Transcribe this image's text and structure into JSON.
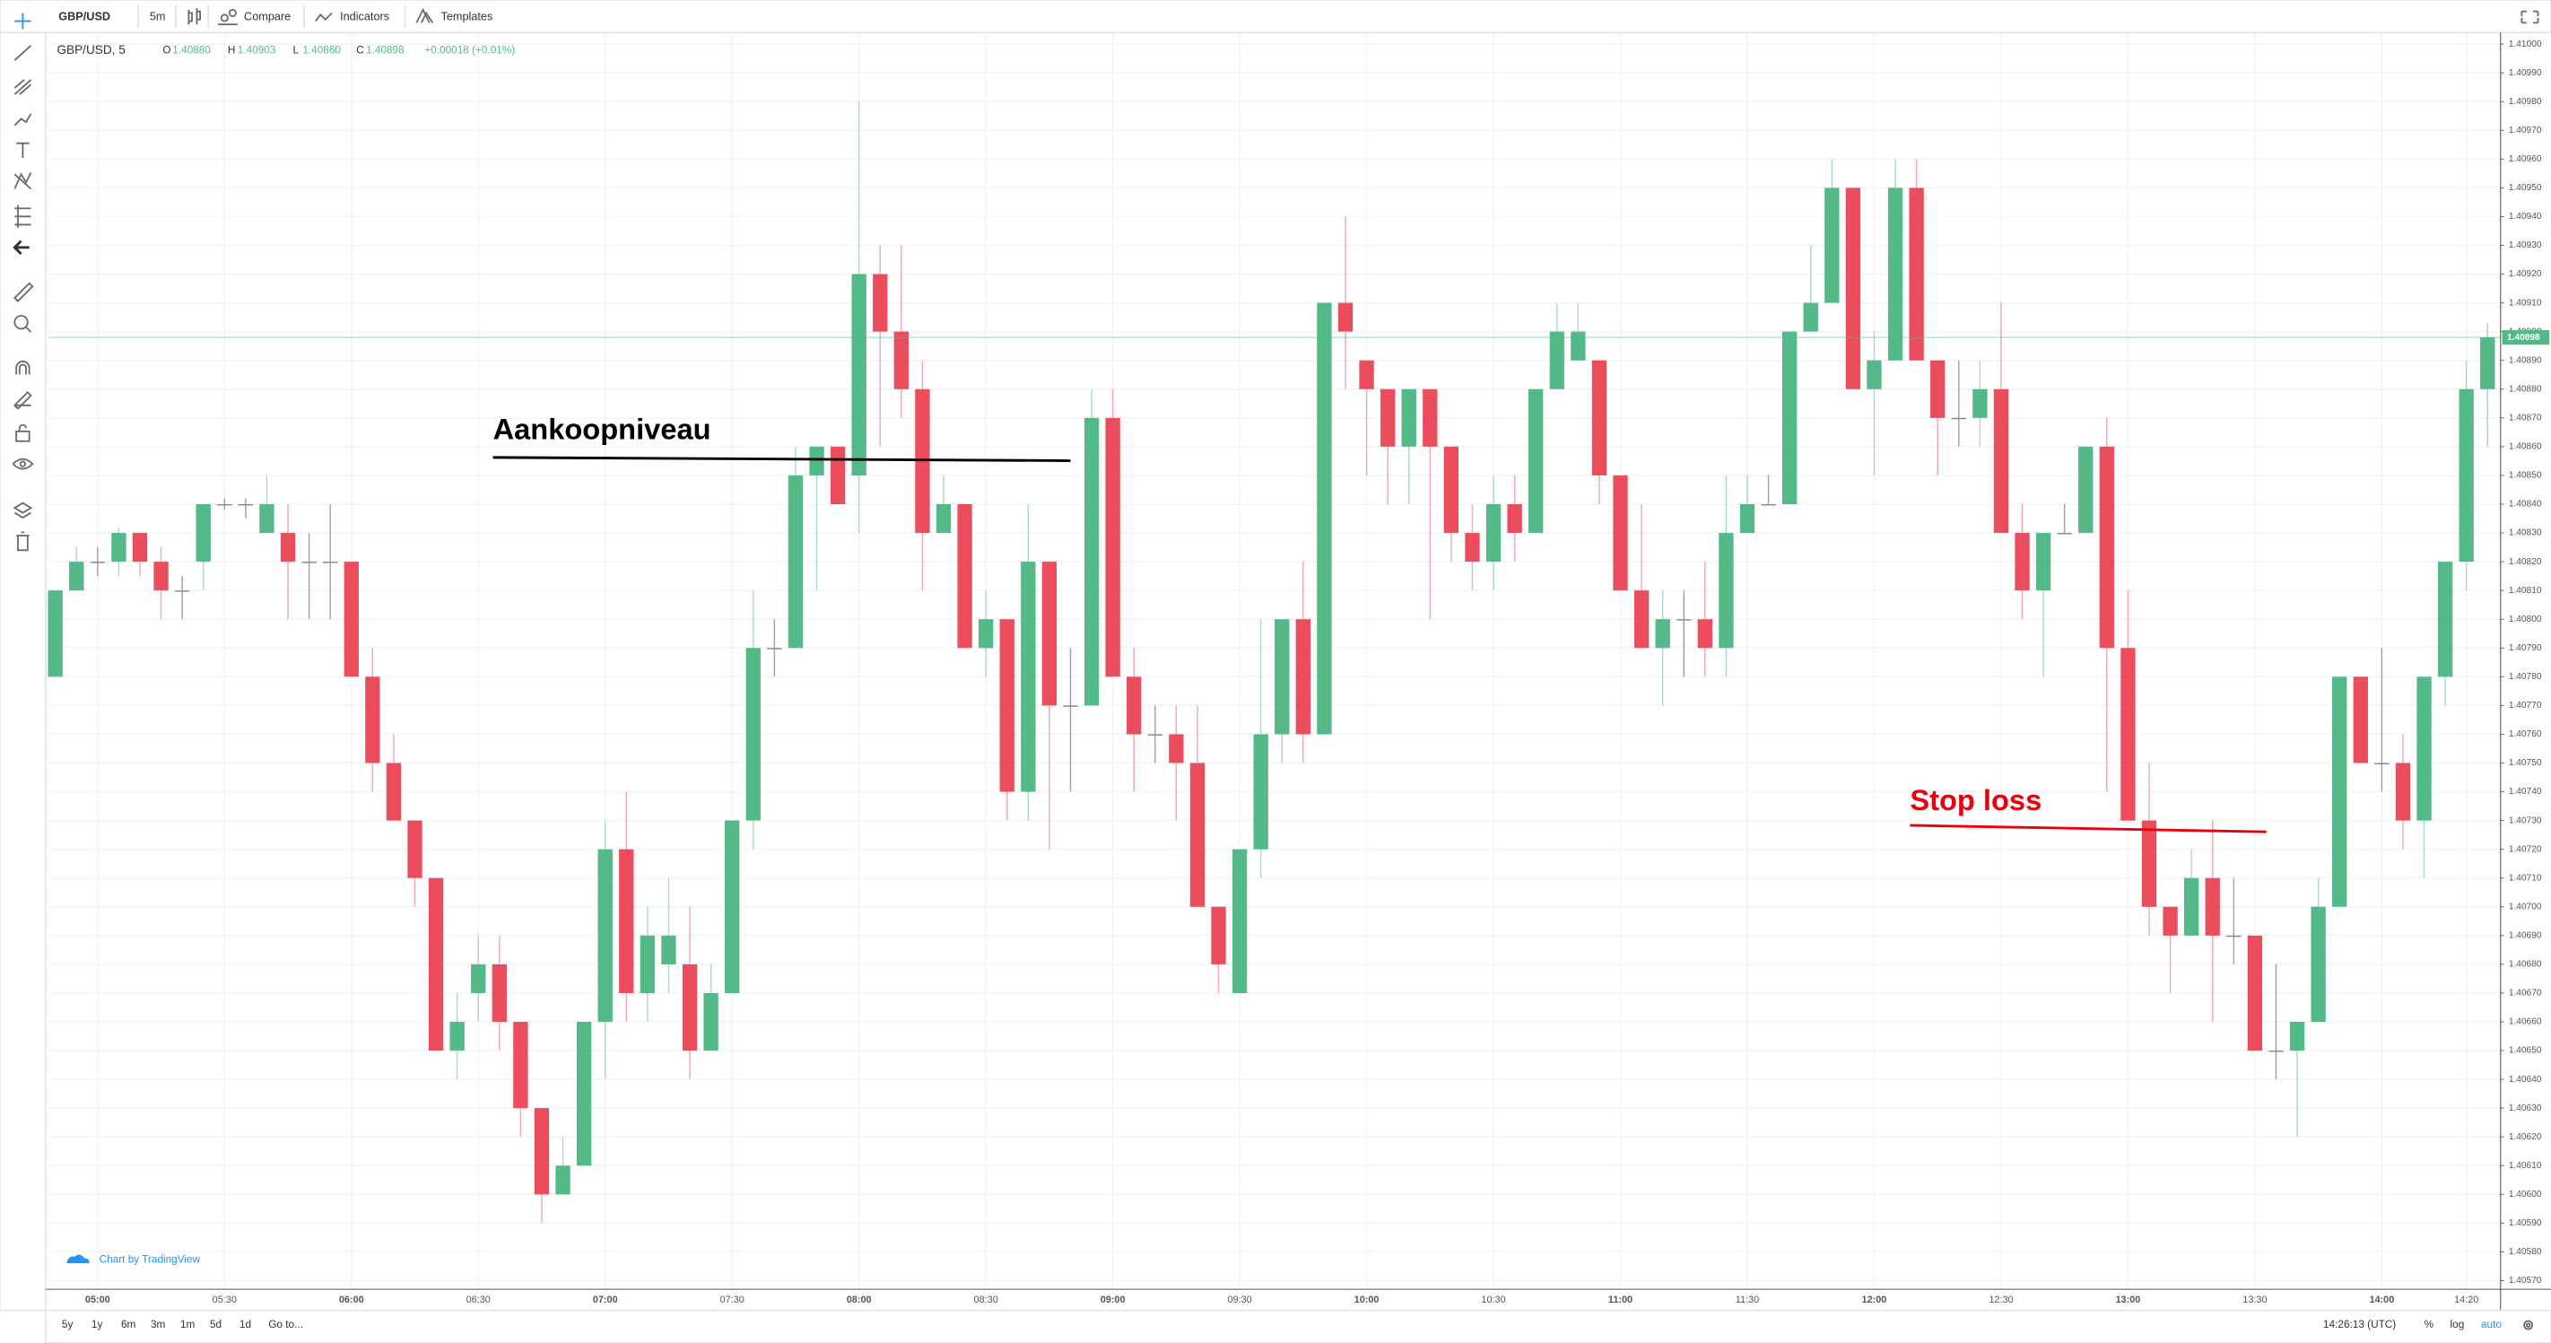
{
  "toolbar": {
    "symbol": "GBP/USD",
    "interval": "5m",
    "compare": "Compare",
    "indicators": "Indicators",
    "templates": "Templates"
  },
  "legend": {
    "symbol": "GBP/USD, 5",
    "o_label": "O",
    "o_value": "1.40880",
    "h_label": "H",
    "h_value": "1.40903",
    "l_label": "L",
    "l_value": "1.40860",
    "c_label": "C",
    "c_value": "1.40898",
    "change": "+0.00018 (+0.01%)"
  },
  "watermark": "Chart by TradingView",
  "bottombar": {
    "ranges": [
      "5y",
      "1y",
      "6m",
      "3m",
      "1m",
      "5d",
      "1d"
    ],
    "goto": "Go to...",
    "clock": "14:26:13 (UTC)",
    "percent": "%",
    "log": "log",
    "auto": "auto"
  },
  "chart_data": {
    "type": "candlestick",
    "up_color": "#53b987",
    "down_color": "#eb4d5c",
    "grid": true,
    "annotations": [
      {
        "text": "Aankoopniveau",
        "color": "#000000"
      },
      {
        "text": "Stop loss",
        "color": "#e8000b"
      }
    ],
    "last_price": {
      "value": 1.40898,
      "label": "1.40898"
    },
    "categories": [
      null,
      null,
      "05:00",
      null,
      null,
      null,
      null,
      null,
      "05:30",
      null,
      null,
      null,
      null,
      null,
      "06:00",
      null,
      null,
      null,
      null,
      null,
      "06:30",
      null,
      null,
      null,
      null,
      null,
      "07:00",
      null,
      null,
      null,
      null,
      null,
      "07:30",
      null,
      null,
      null,
      null,
      null,
      "08:00",
      null,
      null,
      null,
      null,
      null,
      "08:30",
      null,
      null,
      null,
      null,
      null,
      "09:00",
      null,
      null,
      null,
      null,
      null,
      "09:30",
      null,
      null,
      null,
      null,
      null,
      "10:00",
      null,
      null,
      null,
      null,
      null,
      "10:30",
      null,
      null,
      null,
      null,
      null,
      "11:00",
      null,
      null,
      null,
      null,
      null,
      "11:30",
      null,
      null,
      null,
      null,
      null,
      "12:00",
      null,
      null,
      null,
      null,
      null,
      "12:30",
      null,
      null,
      null,
      null,
      null,
      "13:00",
      null,
      null,
      null,
      null,
      null,
      "13:30",
      null,
      null,
      null,
      null,
      null,
      "14:00",
      null,
      null,
      null,
      "14:20",
      null
    ],
    "open": [
      1.4078,
      1.4081,
      1.4082,
      1.4082,
      1.4083,
      1.4082,
      1.4081,
      1.4082,
      1.4084,
      1.4084,
      1.4083,
      1.4083,
      1.4082,
      1.4082,
      1.4082,
      1.4078,
      1.4075,
      1.4073,
      1.4071,
      1.4065,
      1.4067,
      1.4068,
      1.4066,
      1.4063,
      1.406,
      1.4061,
      1.4066,
      1.4072,
      1.4067,
      1.4068,
      1.4068,
      1.4065,
      1.4067,
      1.4073,
      1.4079,
      1.4079,
      1.4085,
      1.4086,
      1.4085,
      1.4092,
      1.409,
      1.4088,
      1.4083,
      1.4084,
      1.4079,
      1.408,
      1.4074,
      1.4082,
      1.4077,
      1.4077,
      1.4087,
      1.4078,
      1.4076,
      1.4076,
      1.4075,
      1.407,
      1.4067,
      1.4072,
      1.4076,
      1.408,
      1.4076,
      1.4091,
      1.4089,
      1.4088,
      1.4086,
      1.4088,
      1.4086,
      1.4083,
      1.4082,
      1.4084,
      1.4083,
      1.4088,
      1.4089,
      1.4089,
      1.4085,
      1.4081,
      1.4079,
      1.408,
      1.408,
      1.4079,
      1.4083,
      1.4084,
      1.4084,
      1.409,
      1.4091,
      1.4095,
      1.4088,
      1.4089,
      1.4095,
      1.4089,
      1.4087,
      1.4087,
      1.4088,
      1.4083,
      1.4081,
      1.4083,
      1.4083,
      1.4086,
      1.4079,
      1.4073,
      1.407,
      1.4069,
      1.4071,
      1.4069,
      1.4069,
      1.4065,
      1.4065,
      1.4066,
      1.407,
      1.4078,
      1.4075,
      1.4075,
      1.4073,
      1.4078,
      1.4082,
      1.4088
    ],
    "high": [
      1.4081,
      1.40825,
      1.40825,
      1.40832,
      1.4083,
      1.40825,
      1.40815,
      1.4084,
      1.40842,
      1.40842,
      1.4085,
      1.4084,
      1.4083,
      1.4084,
      1.4082,
      1.4079,
      1.4076,
      1.4073,
      1.4071,
      1.4067,
      1.4069,
      1.4069,
      1.4066,
      1.4063,
      1.4062,
      1.4066,
      1.4073,
      1.4074,
      1.407,
      1.4071,
      1.407,
      1.4068,
      1.4073,
      1.4081,
      1.408,
      1.4086,
      1.4086,
      1.4086,
      1.4098,
      1.4093,
      1.4093,
      1.4089,
      1.4085,
      1.4084,
      1.4081,
      1.408,
      1.4084,
      1.4082,
      1.4079,
      1.4088,
      1.4088,
      1.4079,
      1.4077,
      1.4077,
      1.4077,
      1.407,
      1.4072,
      1.408,
      1.408,
      1.4082,
      1.4091,
      1.4094,
      1.4089,
      1.4088,
      1.4088,
      1.4088,
      1.4086,
      1.4084,
      1.4085,
      1.4085,
      1.4088,
      1.4091,
      1.4091,
      1.4089,
      1.4085,
      1.4084,
      1.4081,
      1.4081,
      1.4082,
      1.4085,
      1.4085,
      1.4085,
      1.409,
      1.4093,
      1.4096,
      1.4095,
      1.409,
      1.4096,
      1.4096,
      1.4089,
      1.4089,
      1.4089,
      1.4091,
      1.4084,
      1.4083,
      1.4084,
      1.4086,
      1.4087,
      1.4081,
      1.4075,
      1.407,
      1.4072,
      1.4073,
      1.4071,
      1.4069,
      1.4068,
      1.4066,
      1.4071,
      1.4078,
      1.4078,
      1.4079,
      1.4076,
      1.4078,
      1.4082,
      1.4089,
      1.40903
    ],
    "low": [
      1.4078,
      1.4081,
      1.40815,
      1.40815,
      1.40815,
      1.408,
      1.408,
      1.4081,
      1.40838,
      1.40835,
      1.4083,
      1.408,
      1.408,
      1.408,
      1.4078,
      1.4074,
      1.4073,
      1.407,
      1.4065,
      1.4064,
      1.4066,
      1.4065,
      1.4062,
      1.4059,
      1.406,
      1.4061,
      1.4064,
      1.4066,
      1.4066,
      1.4067,
      1.4064,
      1.4065,
      1.4067,
      1.4072,
      1.4078,
      1.4079,
      1.4081,
      1.4084,
      1.4083,
      1.4086,
      1.4087,
      1.4081,
      1.4083,
      1.4079,
      1.4078,
      1.4073,
      1.4073,
      1.4072,
      1.4074,
      1.4077,
      1.4078,
      1.4074,
      1.4075,
      1.4073,
      1.407,
      1.4067,
      1.4067,
      1.4071,
      1.4075,
      1.4075,
      1.4076,
      1.4088,
      1.4085,
      1.4084,
      1.4084,
      1.408,
      1.4082,
      1.4081,
      1.4081,
      1.4082,
      1.4083,
      1.4088,
      1.4089,
      1.4084,
      1.4081,
      1.4079,
      1.4077,
      1.4078,
      1.4078,
      1.4078,
      1.4083,
      1.4084,
      1.4084,
      1.409,
      1.4091,
      1.4088,
      1.4085,
      1.4089,
      1.4089,
      1.4085,
      1.4086,
      1.4086,
      1.4083,
      1.408,
      1.4078,
      1.4083,
      1.4083,
      1.4074,
      1.4073,
      1.4069,
      1.4067,
      1.4069,
      1.4066,
      1.4068,
      1.4065,
      1.4064,
      1.4062,
      1.4066,
      1.407,
      1.4075,
      1.4074,
      1.4072,
      1.4071,
      1.4077,
      1.4081,
      1.4086
    ],
    "close": [
      1.4081,
      1.4082,
      1.4082,
      1.4083,
      1.4082,
      1.4081,
      1.4081,
      1.4084,
      1.4084,
      1.4084,
      1.4084,
      1.4082,
      1.4082,
      1.4082,
      1.4078,
      1.4075,
      1.4073,
      1.4071,
      1.4065,
      1.4066,
      1.4068,
      1.4066,
      1.4063,
      1.406,
      1.4061,
      1.4066,
      1.4072,
      1.4067,
      1.4069,
      1.4069,
      1.4065,
      1.4067,
      1.4073,
      1.4079,
      1.4079,
      1.4085,
      1.4086,
      1.4084,
      1.4092,
      1.409,
      1.4088,
      1.4083,
      1.4084,
      1.4079,
      1.408,
      1.4074,
      1.4082,
      1.4077,
      1.4077,
      1.4087,
      1.4078,
      1.4076,
      1.4076,
      1.4075,
      1.407,
      1.4068,
      1.4072,
      1.4076,
      1.408,
      1.4076,
      1.4091,
      1.409,
      1.4088,
      1.4086,
      1.4088,
      1.4086,
      1.4083,
      1.4082,
      1.4084,
      1.4083,
      1.4088,
      1.409,
      1.409,
      1.4085,
      1.4081,
      1.4079,
      1.408,
      1.408,
      1.4079,
      1.4083,
      1.4084,
      1.4084,
      1.409,
      1.4091,
      1.4095,
      1.4088,
      1.4089,
      1.4095,
      1.4089,
      1.4087,
      1.4087,
      1.4088,
      1.4083,
      1.4081,
      1.4083,
      1.4083,
      1.4086,
      1.4079,
      1.4073,
      1.407,
      1.4069,
      1.4071,
      1.4069,
      1.4069,
      1.4065,
      1.4065,
      1.4066,
      1.407,
      1.4078,
      1.4075,
      1.4075,
      1.4073,
      1.4078,
      1.4082,
      1.4088,
      1.40898
    ],
    "ylim": [
      1.40567,
      1.41004
    ],
    "yticks": [
      {
        "value": 1.4057,
        "label": "1.40570"
      },
      {
        "value": 1.4058,
        "label": "1.40580"
      },
      {
        "value": 1.4059,
        "label": "1.40590"
      },
      {
        "value": 1.406,
        "label": "1.40600"
      },
      {
        "value": 1.4061,
        "label": "1.40610"
      },
      {
        "value": 1.4062,
        "label": "1.40620"
      },
      {
        "value": 1.4063,
        "label": "1.40630"
      },
      {
        "value": 1.4064,
        "label": "1.40640"
      },
      {
        "value": 1.4065,
        "label": "1.40650"
      },
      {
        "value": 1.4066,
        "label": "1.40660"
      },
      {
        "value": 1.4067,
        "label": "1.40670"
      },
      {
        "value": 1.4068,
        "label": "1.40680"
      },
      {
        "value": 1.4069,
        "label": "1.40690"
      },
      {
        "value": 1.407,
        "label": "1.40700"
      },
      {
        "value": 1.4071,
        "label": "1.40710"
      },
      {
        "value": 1.4072,
        "label": "1.40720"
      },
      {
        "value": 1.4073,
        "label": "1.40730"
      },
      {
        "value": 1.4074,
        "label": "1.40740"
      },
      {
        "value": 1.4075,
        "label": "1.40750"
      },
      {
        "value": 1.4076,
        "label": "1.40760"
      },
      {
        "value": 1.4077,
        "label": "1.40770"
      },
      {
        "value": 1.4078,
        "label": "1.40780"
      },
      {
        "value": 1.4079,
        "label": "1.40790"
      },
      {
        "value": 1.408,
        "label": "1.40800"
      },
      {
        "value": 1.4081,
        "label": "1.40810"
      },
      {
        "value": 1.4082,
        "label": "1.40820"
      },
      {
        "value": 1.4083,
        "label": "1.40830"
      },
      {
        "value": 1.4084,
        "label": "1.40840"
      },
      {
        "value": 1.4085,
        "label": "1.40850"
      },
      {
        "value": 1.4086,
        "label": "1.40860"
      },
      {
        "value": 1.4087,
        "label": "1.40870"
      },
      {
        "value": 1.4088,
        "label": "1.40880"
      },
      {
        "value": 1.4089,
        "label": "1.40890"
      },
      {
        "value": 1.409,
        "label": "1.40900"
      },
      {
        "value": 1.4091,
        "label": "1.40910"
      },
      {
        "value": 1.4092,
        "label": "1.40920"
      },
      {
        "value": 1.4093,
        "label": "1.40930"
      },
      {
        "value": 1.4094,
        "label": "1.40940"
      },
      {
        "value": 1.4095,
        "label": "1.40950"
      },
      {
        "value": 1.4096,
        "label": "1.40960"
      },
      {
        "value": 1.4097,
        "label": "1.40970"
      },
      {
        "value": 1.4098,
        "label": "1.40980"
      },
      {
        "value": 1.4099,
        "label": "1.40990"
      },
      {
        "value": 1.41,
        "label": "1.41000"
      }
    ]
  }
}
